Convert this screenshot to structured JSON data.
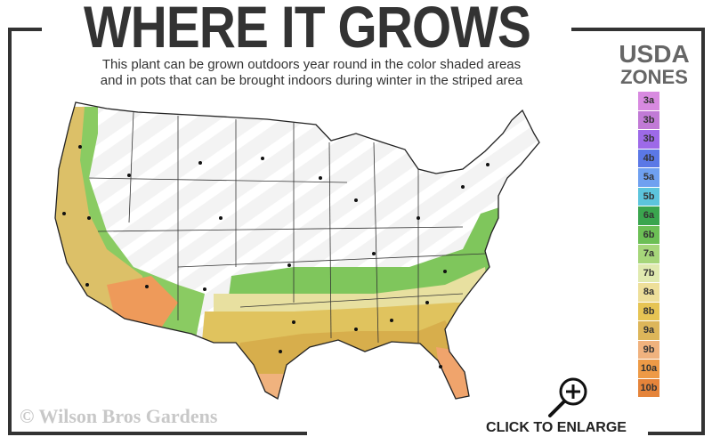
{
  "header": {
    "title": "WHERE IT GROWS",
    "subtitle_line1": "This plant can be grown outdoors year round in the color shaded areas",
    "subtitle_line2": "and in pots that can be brought indoors during winter in the striped area"
  },
  "legend": {
    "title_line1": "USDA",
    "title_line2": "ZONES",
    "zones": [
      {
        "label": "3a",
        "color": "#d88ae0"
      },
      {
        "label": "3b",
        "color": "#c17ad6"
      },
      {
        "label": "3b",
        "color": "#9d6ae8"
      },
      {
        "label": "4b",
        "color": "#5b78e6"
      },
      {
        "label": "5a",
        "color": "#6fa0f0"
      },
      {
        "label": "5b",
        "color": "#5cc4dc"
      },
      {
        "label": "6a",
        "color": "#3aa54e"
      },
      {
        "label": "6b",
        "color": "#6cbf55"
      },
      {
        "label": "7a",
        "color": "#a6d67a"
      },
      {
        "label": "7b",
        "color": "#e0eab0"
      },
      {
        "label": "8a",
        "color": "#eedf9a"
      },
      {
        "label": "8b",
        "color": "#e6c454"
      },
      {
        "label": "9a",
        "color": "#ddb65a"
      },
      {
        "label": "9b",
        "color": "#f0b27e"
      },
      {
        "label": "10a",
        "color": "#ee9a46"
      },
      {
        "label": "10b",
        "color": "#e5843a"
      }
    ]
  },
  "watermark": "© Wilson Bros Gardens",
  "enlarge": {
    "label": "CLICK TO ENLARGE",
    "icon": "zoom-in-icon"
  }
}
